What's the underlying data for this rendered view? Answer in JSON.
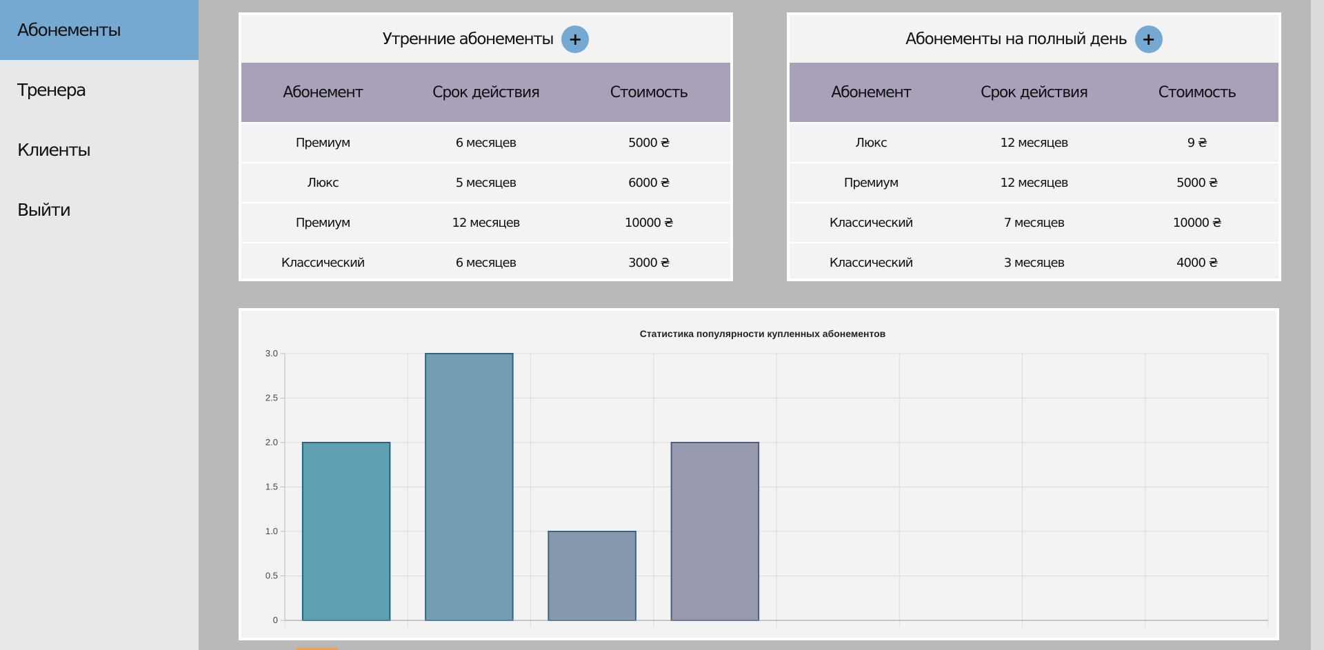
{
  "sidebar": {
    "items": [
      {
        "label": "Абонементы",
        "active": true
      },
      {
        "label": "Тренера",
        "active": false
      },
      {
        "label": "Клиенты",
        "active": false
      },
      {
        "label": "Выйти",
        "active": false
      }
    ]
  },
  "morning": {
    "title": "Утренние абонементы",
    "add_label": "+",
    "headers": [
      "Абонемент",
      "Срок действия",
      "Стоимость"
    ],
    "rows": [
      [
        "Премиум",
        "6 месяцев",
        "5000 ₴"
      ],
      [
        "Люкс",
        "5 месяцев",
        "6000 ₴"
      ],
      [
        "Премиум",
        "12 месяцев",
        "10000 ₴"
      ],
      [
        "Классический",
        "6 месяцев",
        "3000 ₴"
      ]
    ]
  },
  "fullday": {
    "title": "Абонементы на полный день",
    "add_label": "+",
    "headers": [
      "Абонемент",
      "Срок действия",
      "Стоимость"
    ],
    "rows": [
      [
        "Люкс",
        "12 месяцев",
        "9 ₴"
      ],
      [
        "Премиум",
        "12 месяцев",
        "5000 ₴"
      ],
      [
        "Классический",
        "7 месяцев",
        "10000 ₴"
      ],
      [
        "Классический",
        "3 месяцев",
        "4000 ₴"
      ]
    ]
  },
  "colors": {
    "accent": "#76a9d2",
    "table_header": "#a9a0b9",
    "bar_fills": [
      "#5f9fb2",
      "#739db0",
      "#8599ae",
      "#979aae"
    ],
    "bar_strokes": [
      "#1f6481",
      "#2e6583",
      "#3f6381",
      "#505e7f"
    ]
  },
  "chart_data": {
    "type": "bar",
    "title": "Статистика популярности купленных абонементов",
    "categories": [
      "",
      "",
      "",
      "",
      "",
      "",
      "",
      ""
    ],
    "values": [
      2,
      3,
      1,
      2,
      null,
      null,
      null,
      null
    ],
    "ylim": [
      0,
      3
    ],
    "yticks": [
      "0",
      "0.5",
      "1.0",
      "1.5",
      "2.0",
      "2.5",
      "3.0"
    ],
    "xlabel": "",
    "ylabel": "",
    "grid": true,
    "legend": "none"
  }
}
